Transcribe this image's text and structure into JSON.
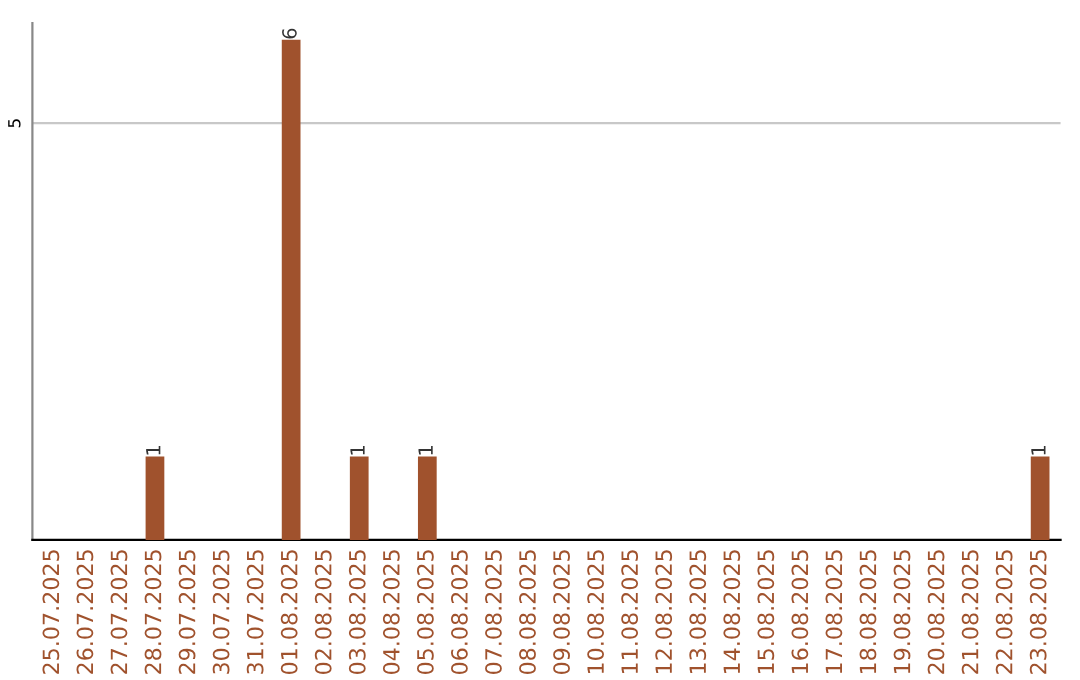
{
  "chart_data": {
    "type": "bar",
    "categories": [
      "25.07.2025",
      "26.07.2025",
      "27.07.2025",
      "28.07.2025",
      "29.07.2025",
      "30.07.2025",
      "31.07.2025",
      "01.08.2025",
      "02.08.2025",
      "03.08.2025",
      "04.08.2025",
      "05.08.2025",
      "06.08.2025",
      "07.08.2025",
      "08.08.2025",
      "09.08.2025",
      "10.08.2025",
      "11.08.2025",
      "12.08.2025",
      "13.08.2025",
      "14.08.2025",
      "15.08.2025",
      "16.08.2025",
      "17.08.2025",
      "18.08.2025",
      "19.08.2025",
      "20.08.2025",
      "21.08.2025",
      "22.08.2025",
      "23.08.2025"
    ],
    "values": [
      0,
      0,
      0,
      1,
      0,
      0,
      0,
      6,
      0,
      1,
      0,
      1,
      0,
      0,
      0,
      0,
      0,
      0,
      0,
      0,
      0,
      0,
      0,
      0,
      0,
      0,
      0,
      0,
      0,
      1
    ],
    "value_labels": [
      null,
      null,
      null,
      "1",
      null,
      null,
      null,
      "6",
      null,
      "1",
      null,
      "1",
      null,
      null,
      null,
      null,
      null,
      null,
      null,
      null,
      null,
      null,
      null,
      null,
      null,
      null,
      null,
      null,
      null,
      "1"
    ],
    "color": "#a0522d",
    "ylim": [
      0,
      6.2
    ],
    "yticks": [
      5
    ],
    "grid": "y"
  }
}
